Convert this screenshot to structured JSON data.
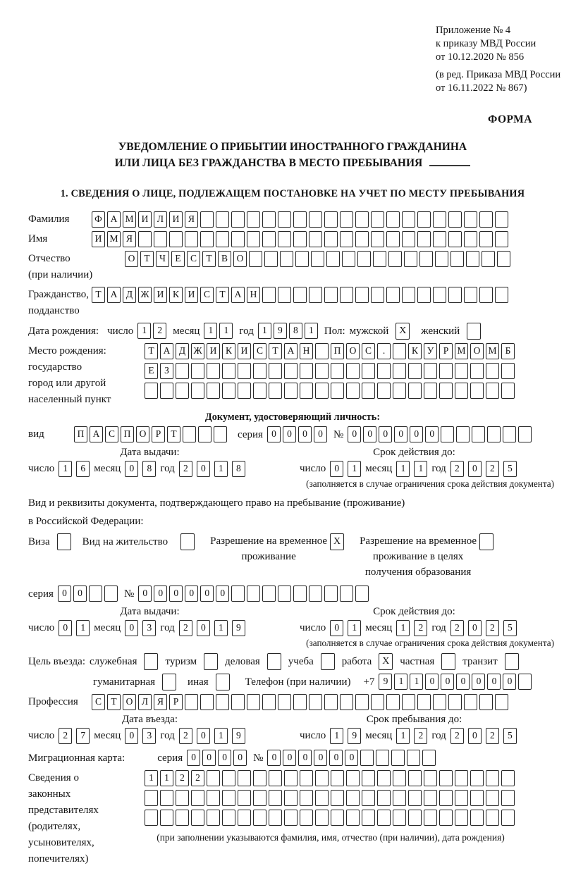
{
  "labels": {
    "day": "число",
    "month": "месяц",
    "year": "год",
    "series": "серия",
    "number": "№"
  },
  "header": {
    "lines": [
      "Приложение № 4",
      "к приказу МВД России",
      "от 10.12.2020 № 856"
    ],
    "sub_lines": [
      "(в ред. Приказа МВД России",
      "от 16.11.2022 № 867)"
    ],
    "form_label": "ФОРМА"
  },
  "title": {
    "line1": "УВЕДОМЛЕНИЕ О ПРИБЫТИИ ИНОСТРАННОГО ГРАЖДАНИНА",
    "line2": "ИЛИ ЛИЦА БЕЗ ГРАЖДАНСТВА В МЕСТО ПРЕБЫВАНИЯ"
  },
  "section1": {
    "heading": "1. СВЕДЕНИЯ О ЛИЦЕ, ПОДЛЕЖАЩЕМ ПОСТАНОВКЕ НА УЧЕТ ПО МЕСТУ ПРЕБЫВАНИЯ"
  },
  "rows": {
    "surname": {
      "label": "Фамилия",
      "text": "ФАМИЛИЯ",
      "len": 27
    },
    "name": {
      "label": "Имя",
      "text": "ИМЯ",
      "len": 27
    },
    "patronymic": {
      "label1": "Отчество",
      "label2": "(при наличии)",
      "text": "ОТЧЕСТВО",
      "len": 25
    },
    "citizenship": {
      "label1": "Гражданство,",
      "label2": "подданство",
      "text": "ТАДЖИКИСТАН",
      "len": 27
    }
  },
  "birth": {
    "label": "Дата рождения:",
    "day": {
      "text": "12",
      "len": 2
    },
    "month": {
      "text": "11",
      "len": 2
    },
    "year": {
      "text": "1981",
      "len": 4
    }
  },
  "sex": {
    "label": "Пол:",
    "male": "мужской",
    "male_mark": "X",
    "female": "женский",
    "female_mark": ""
  },
  "birth_place": {
    "labels": [
      "Место рождения:",
      "государство",
      "город или другой",
      "населенный пункт"
    ],
    "row1": {
      "text": "ТАДЖИКИСТАН ПОС. КУРМОМБ",
      "len": 24
    },
    "row2": {
      "text": "ЕЗ",
      "len": 24
    },
    "row3": {
      "text": "",
      "len": 24
    }
  },
  "id_doc": {
    "heading": "Документ, удостоверяющий личность:",
    "type_label": "вид",
    "type": {
      "text": "ПАСПОРТ",
      "len": 10
    },
    "series": {
      "text": "0000",
      "len": 4
    },
    "number": {
      "text": "000000",
      "len": 12
    }
  },
  "passport_dates": {
    "issue_heading": "Дата выдачи:",
    "expiry_heading": "Срок действия до:",
    "issue": {
      "day": {
        "text": "16",
        "len": 2
      },
      "month": {
        "text": "08",
        "len": 2
      },
      "year": {
        "text": "2018",
        "len": 4
      }
    },
    "expiry": {
      "day": {
        "text": "01",
        "len": 2
      },
      "month": {
        "text": "11",
        "len": 2
      },
      "year": {
        "text": "2025",
        "len": 4
      }
    },
    "note": "(заполняется в случае ограничения срока действия документа)"
  },
  "residence": {
    "line1": "Вид и реквизиты документа, подтверждающего право на пребывание (проживание)",
    "line2": "в Российской Федерации:",
    "visa_label": "Виза",
    "visa_mark": "",
    "vnj_label": "Вид на жительство",
    "vnj_mark": "",
    "rvp_line1": "Разрешение на временное",
    "rvp_line2": "проживание",
    "rvp_mark": "X",
    "rvpo_line1": "Разрешение на временное",
    "rvpo_line2": "проживание в целях",
    "rvpo_line3": "получения образования",
    "rvpo_mark": ""
  },
  "rvp_doc": {
    "series": {
      "text": "00",
      "len": 4
    },
    "number": {
      "text": "000000",
      "len": 15
    }
  },
  "rvp_dates": {
    "issue_heading": "Дата выдачи:",
    "expiry_heading": "Срок действия до:",
    "issue": {
      "day": {
        "text": "01",
        "len": 2
      },
      "month": {
        "text": "03",
        "len": 2
      },
      "year": {
        "text": "2019",
        "len": 4
      }
    },
    "expiry": {
      "day": {
        "text": "01",
        "len": 2
      },
      "month": {
        "text": "12",
        "len": 2
      },
      "year": {
        "text": "2025",
        "len": 4
      }
    },
    "note": "(заполняется в случае ограничения срока действия документа)"
  },
  "purpose": {
    "label": "Цель въезда:",
    "items": [
      {
        "label": "служебная",
        "mark": ""
      },
      {
        "label": "туризм",
        "mark": ""
      },
      {
        "label": "деловая",
        "mark": ""
      },
      {
        "label": "учеба",
        "mark": ""
      },
      {
        "label": "работа",
        "mark": "X"
      },
      {
        "label": "частная",
        "mark": ""
      },
      {
        "label": "транзит",
        "mark": ""
      }
    ],
    "line2": [
      {
        "label": "гуманитарная",
        "mark": ""
      },
      {
        "label": "иная",
        "mark": ""
      }
    ]
  },
  "phone": {
    "label": "Телефон (при наличии)",
    "prefix": "+7",
    "cells": {
      "text": "911000000",
      "len": 10
    }
  },
  "profession": {
    "label": "Профессия",
    "cells": {
      "text": "СТОЛЯР",
      "len": 27
    }
  },
  "entry_dates": {
    "entry_heading": "Дата въезда:",
    "stay_heading": "Срок пребывания до:",
    "entry": {
      "day": {
        "text": "27",
        "len": 2
      },
      "month": {
        "text": "03",
        "len": 2
      },
      "year": {
        "text": "2019",
        "len": 4
      }
    },
    "stay": {
      "day": {
        "text": "19",
        "len": 2
      },
      "month": {
        "text": "12",
        "len": 2
      },
      "year": {
        "text": "2025",
        "len": 4
      }
    }
  },
  "migration": {
    "label": "Миграционная карта:",
    "series": {
      "text": "0000",
      "len": 4
    },
    "number": {
      "text": "000000",
      "len": 11
    }
  },
  "reps": {
    "labels": [
      "Сведения о",
      "законных",
      "представителях",
      "(родителях,",
      "усыновителях,",
      "попечителях)"
    ],
    "row1": {
      "text": "1122",
      "len": 24
    },
    "row2": {
      "text": "",
      "len": 24
    },
    "row3": {
      "text": "",
      "len": 24
    },
    "note": "(при заполнении указываются фамилия, имя, отчество (при наличии), дата рождения)"
  }
}
